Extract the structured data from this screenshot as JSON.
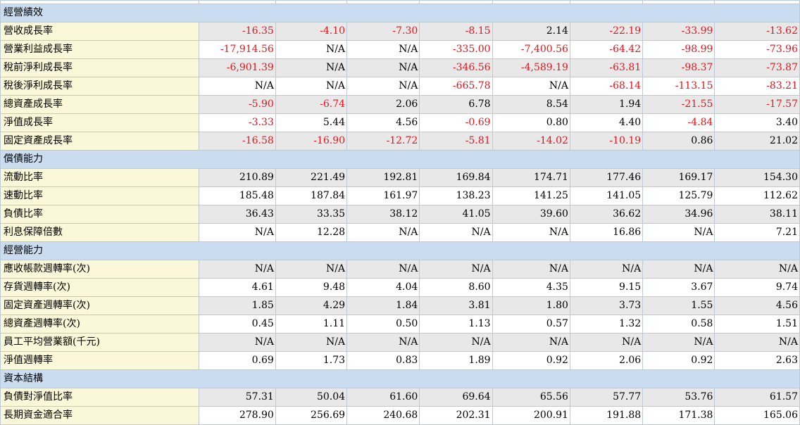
{
  "sections": [
    {
      "title": "經營績效",
      "rows": [
        {
          "label": "營收成長率",
          "values": [
            "-16.35",
            "-4.10",
            "-7.30",
            "-8.15",
            "2.14",
            "-22.19",
            "-33.99",
            "-13.62"
          ]
        },
        {
          "label": "營業利益成長率",
          "values": [
            "-17,914.56",
            "N/A",
            "N/A",
            "-335.00",
            "-7,400.56",
            "-64.42",
            "-98.99",
            "-73.96"
          ]
        },
        {
          "label": "稅前淨利成長率",
          "values": [
            "-6,901.39",
            "N/A",
            "N/A",
            "-346.56",
            "-4,589.19",
            "-63.81",
            "-98.37",
            "-73.87"
          ]
        },
        {
          "label": "稅後淨利成長率",
          "values": [
            "N/A",
            "N/A",
            "N/A",
            "-665.78",
            "N/A",
            "-68.14",
            "-113.15",
            "-83.21"
          ]
        },
        {
          "label": "總資產成長率",
          "values": [
            "-5.90",
            "-6.74",
            "2.06",
            "6.78",
            "8.54",
            "1.94",
            "-21.55",
            "-17.57"
          ]
        },
        {
          "label": "淨值成長率",
          "values": [
            "-3.33",
            "5.44",
            "4.56",
            "-0.69",
            "0.80",
            "4.40",
            "-4.84",
            "3.40"
          ]
        },
        {
          "label": "固定資產成長率",
          "values": [
            "-16.58",
            "-16.90",
            "-12.72",
            "-5.81",
            "-14.02",
            "-10.19",
            "0.86",
            "21.02"
          ]
        }
      ]
    },
    {
      "title": "償債能力",
      "rows": [
        {
          "label": "流動比率",
          "values": [
            "210.89",
            "221.49",
            "192.81",
            "169.84",
            "174.71",
            "177.46",
            "169.17",
            "154.30"
          ]
        },
        {
          "label": "速動比率",
          "values": [
            "185.48",
            "187.84",
            "161.97",
            "138.23",
            "141.25",
            "141.05",
            "125.79",
            "112.62"
          ]
        },
        {
          "label": "負債比率",
          "values": [
            "36.43",
            "33.35",
            "38.12",
            "41.05",
            "39.60",
            "36.62",
            "34.96",
            "38.11"
          ]
        },
        {
          "label": "利息保障倍數",
          "values": [
            "N/A",
            "12.28",
            "N/A",
            "N/A",
            "N/A",
            "16.86",
            "N/A",
            "7.21"
          ]
        }
      ]
    },
    {
      "title": "經營能力",
      "rows": [
        {
          "label": "應收帳款週轉率(次)",
          "values": [
            "N/A",
            "N/A",
            "N/A",
            "N/A",
            "N/A",
            "N/A",
            "N/A",
            "N/A"
          ]
        },
        {
          "label": "存貨週轉率(次)",
          "values": [
            "4.61",
            "9.48",
            "4.04",
            "8.60",
            "4.35",
            "9.15",
            "3.67",
            "9.74"
          ]
        },
        {
          "label": "固定資產週轉率(次)",
          "values": [
            "1.85",
            "4.29",
            "1.84",
            "3.81",
            "1.80",
            "3.73",
            "1.55",
            "4.56"
          ]
        },
        {
          "label": "總資產週轉率(次)",
          "values": [
            "0.45",
            "1.11",
            "0.50",
            "1.13",
            "0.57",
            "1.32",
            "0.58",
            "1.51"
          ]
        },
        {
          "label": "員工平均營業額(千元)",
          "values": [
            "N/A",
            "N/A",
            "N/A",
            "N/A",
            "N/A",
            "N/A",
            "N/A",
            "N/A"
          ]
        },
        {
          "label": "淨值週轉率",
          "values": [
            "0.69",
            "1.73",
            "0.83",
            "1.89",
            "0.92",
            "2.06",
            "0.92",
            "2.63"
          ]
        }
      ]
    },
    {
      "title": "資本結構",
      "rows": [
        {
          "label": "負債對淨值比率",
          "values": [
            "57.31",
            "50.04",
            "61.60",
            "69.64",
            "65.56",
            "57.77",
            "53.76",
            "61.57"
          ]
        },
        {
          "label": "長期資金適合率",
          "values": [
            "278.90",
            "256.69",
            "240.68",
            "202.31",
            "200.91",
            "191.88",
            "171.38",
            "165.06"
          ]
        }
      ]
    }
  ],
  "colors": {
    "section_bg": "#c9dcf0",
    "label_bg": "#faf8d8",
    "alt_row_bg": "#e8e8e8",
    "negative_text": "#e8141b",
    "border": "#bcc9d8"
  }
}
